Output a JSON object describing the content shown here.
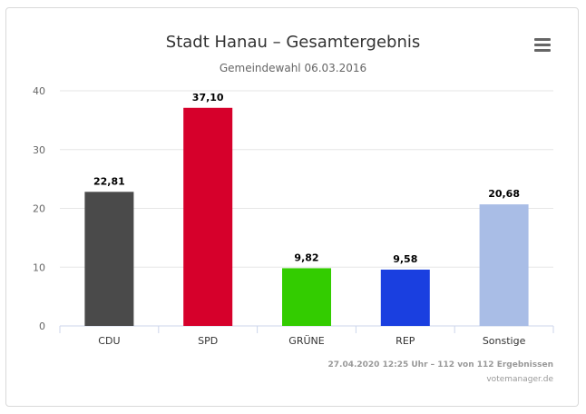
{
  "chart_data": {
    "type": "bar",
    "title": "Stadt Hanau – Gesamtergebnis",
    "subtitle": "Gemeindewahl 06.03.2016",
    "categories": [
      "CDU",
      "SPD",
      "GRÜNE",
      "REP",
      "Sonstige"
    ],
    "values": [
      22.81,
      37.1,
      9.82,
      9.58,
      20.68
    ],
    "value_labels": [
      "22,81",
      "37,10",
      "9,82",
      "9,58",
      "20,68"
    ],
    "colors": [
      "#4a4a4a",
      "#d6002b",
      "#33cc00",
      "#1a3fe0",
      "#a9bde6"
    ],
    "ylim": [
      0,
      40
    ],
    "yticks": [
      0,
      10,
      20,
      30,
      40
    ],
    "xlabel": "",
    "ylabel": "",
    "grid": true
  },
  "footer": {
    "status": "27.04.2020 12:25 Uhr – 112 von 112 Ergebnissen",
    "source": "votemanager.de"
  },
  "menu": {
    "icon": "hamburger-menu-icon"
  }
}
